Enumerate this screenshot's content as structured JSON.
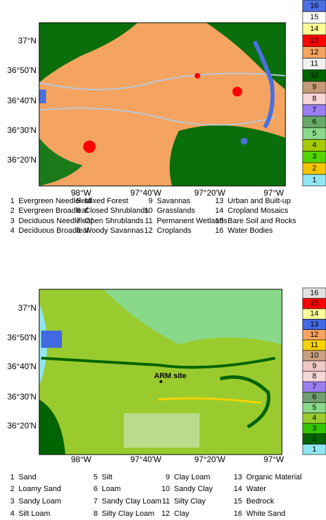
{
  "panels": [
    {
      "lat_ticks": [
        "37°N",
        "36°50'N",
        "36°40'N",
        "36°30'N",
        "36°20'N"
      ],
      "lon_ticks": [
        "98°W",
        "97°40'W",
        "97°20'W",
        "97°W"
      ],
      "colorbar": {
        "labels": [
          "1",
          "2",
          "3",
          "4",
          "5",
          "6",
          "7",
          "8",
          "9",
          "10",
          "11",
          "12",
          "13",
          "14",
          "15",
          "16"
        ],
        "colors": [
          "#8fe6f2",
          "#f5c400",
          "#55d400",
          "#a6c800",
          "#8ad98a",
          "#66a866",
          "#9a7ef0",
          "#f7d6d6",
          "#c49a78",
          "#006400",
          "#f0f0f0",
          "#f4a460",
          "#ff0000",
          "#ffff99",
          "#ffffff",
          "#4a6fe0"
        ]
      },
      "legend": [
        {
          "number": "1",
          "name": "Evergreen Needleleaf"
        },
        {
          "number": "2",
          "name": "Evergreen Broadleaf"
        },
        {
          "number": "3",
          "name": "Deciduous Needleleaf"
        },
        {
          "number": "4",
          "name": "Deciduous Broadleaf"
        },
        {
          "number": "5",
          "name": "Mixed Forest"
        },
        {
          "number": "6",
          "name": "Closed Shrublands"
        },
        {
          "number": "7",
          "name": "Open Shrublands"
        },
        {
          "number": "8",
          "name": "Woody Savannas"
        },
        {
          "number": "9",
          "name": "Savannas"
        },
        {
          "number": "10",
          "name": "Grasslands"
        },
        {
          "number": "11",
          "name": "Permanent Wetlands"
        },
        {
          "number": "12",
          "name": "Croplands"
        },
        {
          "number": "13",
          "name": "Urban and Built-up"
        },
        {
          "number": "14",
          "name": "Cropland Mosaics"
        },
        {
          "number": "15",
          "name": "Bare Soil and Rocks"
        },
        {
          "number": "16",
          "name": "Water Bodies"
        }
      ]
    },
    {
      "lat_ticks": [
        "37°N",
        "36°50'N",
        "36°40'N",
        "36°30'N",
        "36°20'N"
      ],
      "lon_ticks": [
        "98°W",
        "97°40'W",
        "97°20'W",
        "97°W"
      ],
      "colorbar": {
        "labels": [
          "1",
          "2",
          "3",
          "4",
          "5",
          "6",
          "7",
          "8",
          "9",
          "10",
          "11",
          "12",
          "13",
          "14",
          "15",
          "16"
        ],
        "colors": [
          "#8fe6f2",
          "#006400",
          "#33c400",
          "#9acb2e",
          "#8ad98a",
          "#6f9e6f",
          "#9a7ef0",
          "#f7d6d6",
          "#f0c8c8",
          "#c8a080",
          "#f5d300",
          "#f4a460",
          "#4169e1",
          "#ffff99",
          "#ff0000",
          "#e0e0e0"
        ]
      },
      "annotation": "ARM site",
      "legend": [
        {
          "number": "1",
          "name": "Sand"
        },
        {
          "number": "2",
          "name": "Loamy Sand"
        },
        {
          "number": "3",
          "name": "Sandy Loam"
        },
        {
          "number": "4",
          "name": "Silt Loam"
        },
        {
          "number": "5",
          "name": "Silt"
        },
        {
          "number": "6",
          "name": "Loam"
        },
        {
          "number": "7",
          "name": "Sandy Clay Loam"
        },
        {
          "number": "8",
          "name": "Silty Clay Loam"
        },
        {
          "number": "9",
          "name": "Clay Loam"
        },
        {
          "number": "10",
          "name": "Sandy Clay"
        },
        {
          "number": "11",
          "name": "Silty Clay"
        },
        {
          "number": "12",
          "name": "Clay"
        },
        {
          "number": "13",
          "name": "Organic Material"
        },
        {
          "number": "14",
          "name": "Water"
        },
        {
          "number": "15",
          "name": "Bedrock"
        },
        {
          "number": "16",
          "name": "White Sand"
        }
      ]
    }
  ]
}
